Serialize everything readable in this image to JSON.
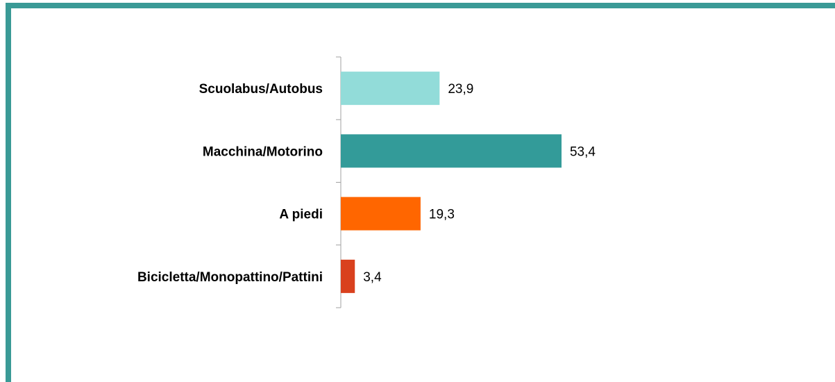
{
  "chart_data": {
    "type": "bar",
    "orientation": "horizontal",
    "categories": [
      "Scuolabus/Autobus",
      "Macchina/Motorino",
      "A piedi",
      "Bicicletta/Monopattino/Pattini"
    ],
    "values": [
      23.9,
      53.4,
      19.3,
      3.4
    ],
    "value_labels": [
      "23,9",
      "53,4",
      "19,3",
      "3,4"
    ],
    "colors": [
      "#92dcd9",
      "#339b99",
      "#ff6600",
      "#d9411e"
    ]
  }
}
